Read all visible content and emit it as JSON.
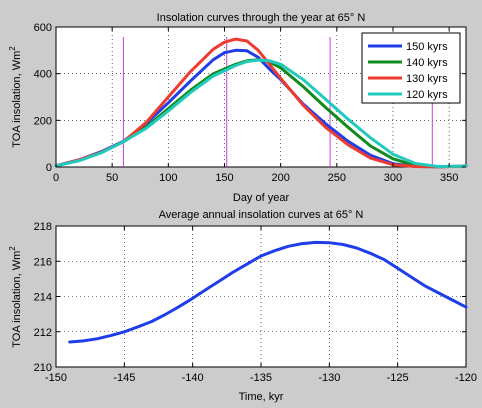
{
  "chart_data": [
    {
      "type": "line",
      "title": "Insolation curves through the year at 65° N",
      "xlabel": "Day of year",
      "ylabel": "TOA insolation, Wm",
      "ylabel_sup": "2",
      "xlim": [
        0,
        365
      ],
      "ylim": [
        0,
        600
      ],
      "xticks": [
        0,
        50,
        100,
        150,
        200,
        250,
        300,
        350
      ],
      "yticks": [
        0,
        200,
        400,
        600
      ],
      "grid": true,
      "legend_position": "top-right",
      "series": [
        {
          "name": "150 kyrs",
          "color": "#1f3de8",
          "x": [
            0,
            20,
            40,
            60,
            80,
            100,
            120,
            140,
            150,
            160,
            170,
            180,
            190,
            200,
            220,
            240,
            260,
            280,
            300,
            320,
            340,
            360,
            365
          ],
          "y": [
            5,
            30,
            65,
            110,
            185,
            275,
            370,
            460,
            490,
            500,
            498,
            470,
            420,
            375,
            270,
            185,
            110,
            50,
            14,
            2,
            1,
            3,
            5
          ]
        },
        {
          "name": "140 kyrs",
          "color": "#118a1e",
          "x": [
            0,
            20,
            40,
            60,
            80,
            100,
            120,
            140,
            160,
            170,
            180,
            190,
            200,
            220,
            240,
            260,
            280,
            300,
            320,
            340,
            360,
            365
          ],
          "y": [
            5,
            28,
            62,
            108,
            170,
            250,
            330,
            400,
            440,
            455,
            460,
            450,
            425,
            345,
            255,
            170,
            90,
            35,
            6,
            1,
            3,
            5
          ]
        },
        {
          "name": "130 kyrs",
          "color": "#ee3b30",
          "x": [
            0,
            20,
            40,
            60,
            80,
            100,
            120,
            140,
            150,
            160,
            170,
            180,
            190,
            200,
            220,
            240,
            260,
            280,
            300,
            320,
            340,
            360,
            365
          ],
          "y": [
            5,
            30,
            62,
            108,
            190,
            300,
            410,
            505,
            535,
            548,
            540,
            500,
            440,
            380,
            265,
            170,
            95,
            38,
            10,
            2,
            1,
            3,
            5
          ]
        },
        {
          "name": "120 kyrs",
          "color": "#22c9bd",
          "x": [
            0,
            20,
            40,
            60,
            80,
            100,
            120,
            140,
            160,
            170,
            180,
            190,
            200,
            220,
            240,
            260,
            280,
            300,
            320,
            340,
            360,
            365
          ],
          "y": [
            5,
            26,
            60,
            108,
            165,
            240,
            320,
            390,
            435,
            452,
            458,
            455,
            440,
            375,
            290,
            205,
            125,
            55,
            15,
            2,
            3,
            5
          ]
        }
      ],
      "vertical_markers": [
        60,
        152,
        244,
        335
      ]
    },
    {
      "type": "line",
      "title": "Average annual insolation curves at 65° N",
      "xlabel": "Time, kyr",
      "ylabel": "TOA insolation, Wm",
      "ylabel_sup": "2",
      "xlim": [
        -150,
        -120
      ],
      "ylim": [
        210,
        218
      ],
      "xticks": [
        -150,
        -145,
        -140,
        -135,
        -130,
        -125,
        -120
      ],
      "yticks": [
        210,
        212,
        214,
        216,
        218
      ],
      "grid": true,
      "series": [
        {
          "color": "#1f3de8",
          "x": [
            -149,
            -148,
            -147,
            -146,
            -145,
            -144,
            -143,
            -142,
            -141,
            -140,
            -139,
            -138,
            -137,
            -136,
            -135,
            -134,
            -133,
            -132,
            -131,
            -130,
            -129,
            -128,
            -127,
            -126,
            -125,
            -124,
            -123,
            -122,
            -121,
            -120
          ],
          "y": [
            211.42,
            211.48,
            211.6,
            211.78,
            212.0,
            212.28,
            212.58,
            212.98,
            213.42,
            213.9,
            214.4,
            214.9,
            215.4,
            215.85,
            216.3,
            216.6,
            216.85,
            217.0,
            217.07,
            217.05,
            216.95,
            216.75,
            216.45,
            216.1,
            215.6,
            215.1,
            214.6,
            214.2,
            213.8,
            213.4
          ]
        }
      ]
    }
  ],
  "legend": {
    "items": [
      {
        "label": "150 kyrs",
        "color": "#1f3de8"
      },
      {
        "label": "140 kyrs",
        "color": "#118a1e"
      },
      {
        "label": "130 kyrs",
        "color": "#ee3b30"
      },
      {
        "label": "120 kyrs",
        "color": "#22c9bd"
      }
    ]
  }
}
